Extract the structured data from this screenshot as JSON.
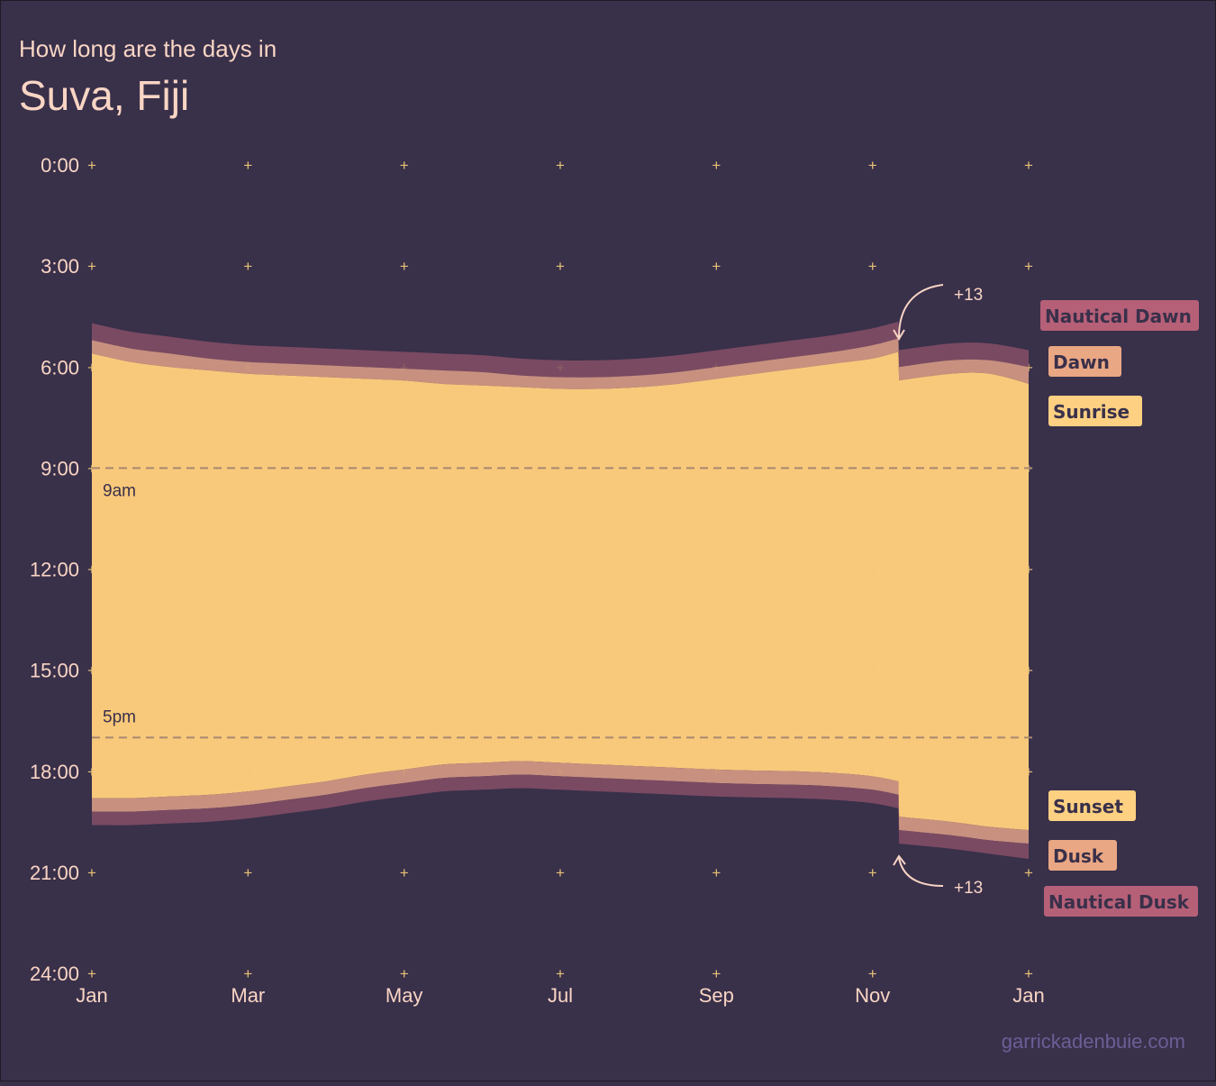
{
  "header": {
    "subtitle": "How long are the days in",
    "title": "Suva, Fiji"
  },
  "credit": "garrickadenbuie.com",
  "chart_data": {
    "type": "area",
    "y_axis": {
      "ticks": [
        "0:00",
        "3:00",
        "6:00",
        "9:00",
        "12:00",
        "15:00",
        "18:00",
        "21:00",
        "24:00"
      ],
      "range_hours": [
        0,
        24
      ],
      "reversed": true
    },
    "x_axis": {
      "ticks": [
        "Jan",
        "Mar",
        "May",
        "Jul",
        "Sep",
        "Nov",
        "Jan"
      ],
      "tick_month_index": [
        0,
        2,
        4,
        6,
        8,
        10,
        12
      ],
      "range_months": [
        0,
        12
      ]
    },
    "grid": "plus-markers",
    "x_month": [
      0,
      0.5,
      1,
      1.5,
      2,
      2.5,
      3,
      3.5,
      4,
      4.5,
      5,
      5.5,
      6,
      6.5,
      7,
      7.5,
      8,
      8.5,
      9,
      9.5,
      10,
      10.33,
      10.34,
      11,
      11.5,
      12
    ],
    "series": [
      {
        "name": "Nautical Dawn",
        "color": "#7a4a62",
        "values": [
          4.7,
          4.95,
          5.1,
          5.25,
          5.35,
          5.4,
          5.45,
          5.5,
          5.55,
          5.6,
          5.65,
          5.75,
          5.8,
          5.8,
          5.75,
          5.65,
          5.5,
          5.35,
          5.2,
          5.05,
          4.85,
          4.65,
          5.5,
          5.3,
          5.3,
          5.5
        ]
      },
      {
        "name": "Dawn",
        "color": "#c8907f",
        "values": [
          5.2,
          5.45,
          5.6,
          5.75,
          5.85,
          5.9,
          5.95,
          6.0,
          6.05,
          6.1,
          6.15,
          6.25,
          6.3,
          6.3,
          6.25,
          6.15,
          6.0,
          5.85,
          5.7,
          5.55,
          5.35,
          5.15,
          6.0,
          5.8,
          5.8,
          6.0
        ]
      },
      {
        "name": "Sunrise",
        "color": "#f8c97b",
        "values": [
          5.6,
          5.85,
          6.0,
          6.1,
          6.2,
          6.25,
          6.3,
          6.35,
          6.4,
          6.5,
          6.55,
          6.6,
          6.65,
          6.65,
          6.6,
          6.5,
          6.35,
          6.2,
          6.05,
          5.9,
          5.75,
          5.55,
          6.4,
          6.2,
          6.2,
          6.5
        ]
      },
      {
        "name": "Sunset",
        "color": "#f8c97b",
        "values": [
          18.8,
          18.8,
          18.75,
          18.7,
          18.6,
          18.45,
          18.3,
          18.1,
          17.95,
          17.8,
          17.75,
          17.7,
          17.75,
          17.8,
          17.85,
          17.9,
          17.95,
          17.98,
          18.0,
          18.05,
          18.15,
          18.3,
          19.35,
          19.5,
          19.65,
          19.75
        ]
      },
      {
        "name": "Dusk",
        "color": "#c8907f",
        "values": [
          19.2,
          19.2,
          19.15,
          19.1,
          19.0,
          18.85,
          18.7,
          18.5,
          18.35,
          18.2,
          18.15,
          18.1,
          18.15,
          18.2,
          18.25,
          18.3,
          18.35,
          18.38,
          18.4,
          18.45,
          18.55,
          18.7,
          19.75,
          19.9,
          20.05,
          20.15
        ]
      },
      {
        "name": "Nautical Dusk",
        "color": "#7a4a62",
        "values": [
          19.6,
          19.6,
          19.55,
          19.5,
          19.4,
          19.25,
          19.1,
          18.9,
          18.75,
          18.6,
          18.55,
          18.5,
          18.55,
          18.6,
          18.65,
          18.7,
          18.75,
          18.78,
          18.8,
          18.85,
          18.95,
          19.1,
          20.15,
          20.3,
          20.45,
          20.6
        ]
      }
    ],
    "reference_lines": [
      {
        "hour": 9,
        "label": "9am"
      },
      {
        "hour": 17,
        "label": "5pm"
      }
    ],
    "annotations": [
      {
        "label": "+13",
        "month": 10.33,
        "hour": 5.2,
        "arrow_to": "dawn-shift"
      },
      {
        "label": "+13",
        "month": 10.33,
        "hour": 20.3,
        "arrow_to": "dusk-shift"
      }
    ],
    "legend": {
      "placement": "right",
      "items": [
        {
          "label": "Nautical Dawn",
          "color": "#b66078"
        },
        {
          "label": "Dawn",
          "color": "#eaa784"
        },
        {
          "label": "Sunrise",
          "color": "#fdd082"
        },
        {
          "label": "Sunset",
          "color": "#fdd082"
        },
        {
          "label": "Dusk",
          "color": "#eaa784"
        },
        {
          "label": "Nautical Dusk",
          "color": "#b66078"
        }
      ]
    }
  }
}
